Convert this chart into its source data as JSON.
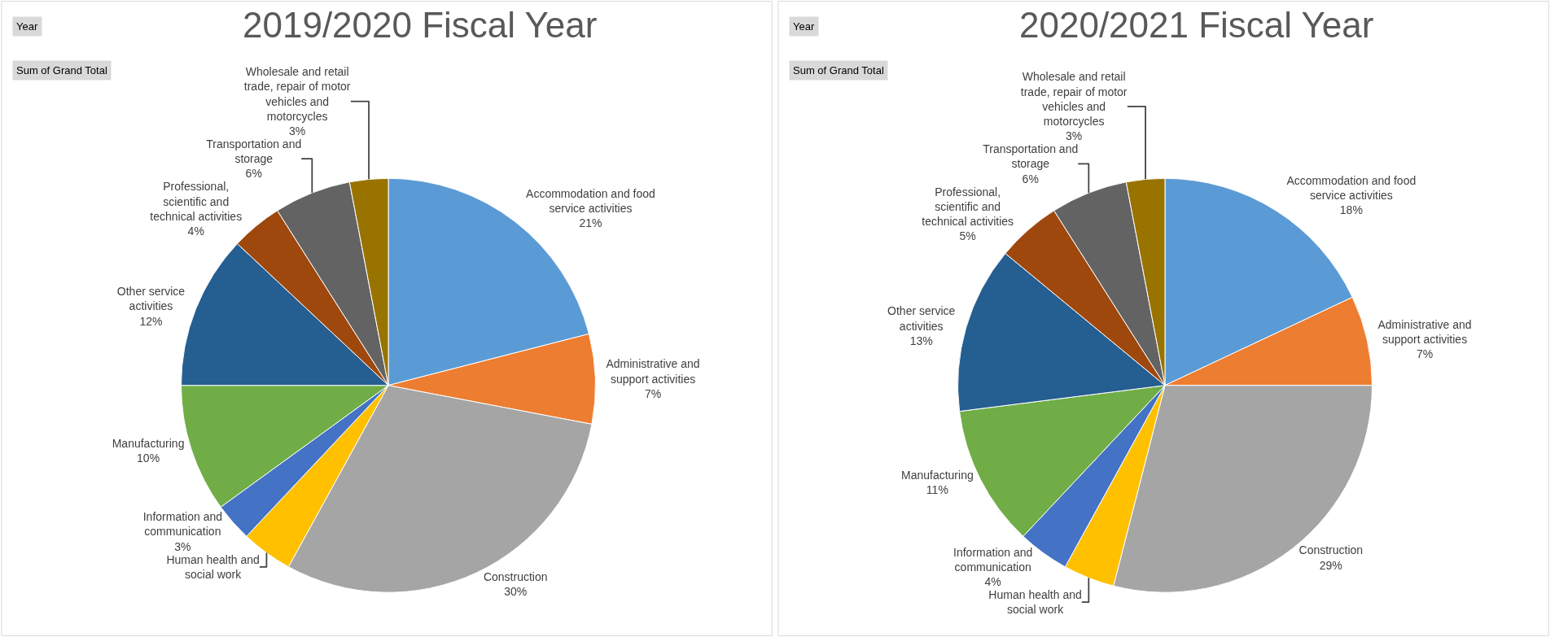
{
  "chart_data": [
    {
      "type": "pie",
      "title": "2019/2020 Fiscal Year",
      "annotations": [
        "Year",
        "Sum of Grand Total"
      ],
      "categories": [
        "Accommodation and food service activities",
        "Administrative and support activities",
        "Construction",
        "Human health and social work",
        "Information and communication",
        "Manufacturing",
        "Other service activities",
        "Professional, scientific and technical activities",
        "Transportation and storage",
        "Wholesale and retail trade, repair of motor vehicles and motorcycles"
      ],
      "values": [
        21,
        7,
        30,
        4,
        3,
        10,
        12,
        4,
        6,
        3
      ],
      "value_labels": [
        "21%",
        "7%",
        "30%",
        null,
        "3%",
        "10%",
        "12%",
        "4%",
        "6%",
        "3%"
      ],
      "colors": [
        "#5b9bd5",
        "#ed7d31",
        "#a5a5a5",
        "#ffc000",
        "#4472c4",
        "#70ad47",
        "#255e91",
        "#9e480e",
        "#636363",
        "#997300"
      ]
    },
    {
      "type": "pie",
      "title": "2020/2021 Fiscal Year",
      "annotations": [
        "Year",
        "Sum of Grand Total"
      ],
      "categories": [
        "Accommodation and food service activities",
        "Administrative and support activities",
        "Construction",
        "Human health and social work",
        "Information and communication",
        "Manufacturing",
        "Other service activities",
        "Professional, scientific and technical activities",
        "Transportation and storage",
        "Wholesale and retail trade, repair of motor vehicles and motorcycles"
      ],
      "values": [
        18,
        7,
        29,
        4,
        4,
        11,
        13,
        5,
        6,
        3
      ],
      "value_labels": [
        "18%",
        "7%",
        "29%",
        null,
        "4%",
        "11%",
        "13%",
        "5%",
        "6%",
        "3%"
      ],
      "colors": [
        "#5b9bd5",
        "#ed7d31",
        "#a5a5a5",
        "#ffc000",
        "#4472c4",
        "#70ad47",
        "#255e91",
        "#9e480e",
        "#636363",
        "#997300"
      ]
    }
  ]
}
